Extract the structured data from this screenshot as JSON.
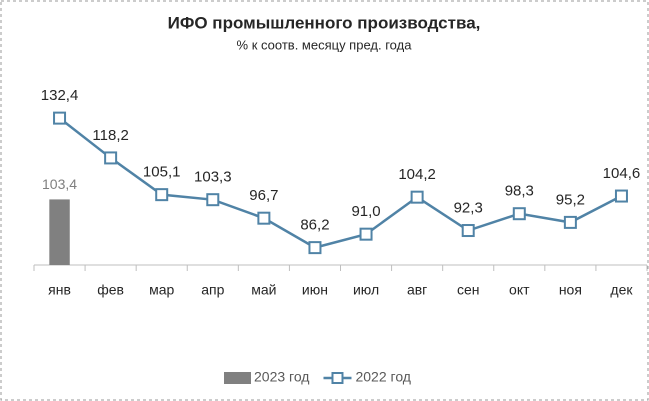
{
  "chart_data": {
    "type": "bar-line",
    "title": "ИФО промышленного производства,",
    "subtitle": "% к соотв. месяцу пред. года",
    "categories": [
      "янв",
      "фев",
      "мар",
      "апр",
      "май",
      "июн",
      "июл",
      "авг",
      "сен",
      "окт",
      "ноя",
      "дек"
    ],
    "series": [
      {
        "name": "2023 год",
        "type": "bar",
        "color": "#808080",
        "values": [
          103.4,
          null,
          null,
          null,
          null,
          null,
          null,
          null,
          null,
          null,
          null,
          null
        ],
        "value_labels": [
          "103,4",
          null,
          null,
          null,
          null,
          null,
          null,
          null,
          null,
          null,
          null,
          null
        ]
      },
      {
        "name": "2022 год",
        "type": "line",
        "color": "#5083a6",
        "values": [
          132.4,
          118.2,
          105.1,
          103.3,
          96.7,
          86.2,
          91.0,
          104.2,
          92.3,
          98.3,
          95.2,
          104.6
        ],
        "value_labels": [
          "132,4",
          "118,2",
          "105,1",
          "103,3",
          "96,7",
          "86,2",
          "91,0",
          "104,2",
          "92,3",
          "98,3",
          "95,2",
          "104,6"
        ]
      }
    ],
    "ylim": [
      80,
      146
    ],
    "legend": "bottom"
  }
}
